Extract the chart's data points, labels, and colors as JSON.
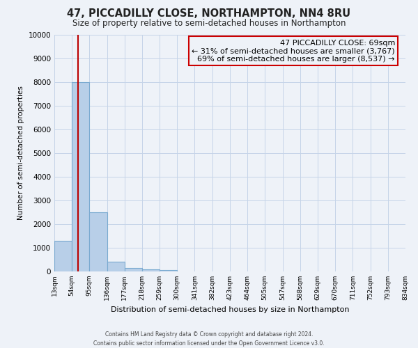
{
  "title": "47, PICCADILLY CLOSE, NORTHAMPTON, NN4 8RU",
  "subtitle": "Size of property relative to semi-detached houses in Northampton",
  "xlabel": "Distribution of semi-detached houses by size in Northampton",
  "ylabel": "Number of semi-detached properties",
  "bar_color": "#b8cfe8",
  "bar_edge_color": "#7aaad0",
  "bin_labels": [
    "13sqm",
    "54sqm",
    "95sqm",
    "136sqm",
    "177sqm",
    "218sqm",
    "259sqm",
    "300sqm",
    "341sqm",
    "382sqm",
    "423sqm",
    "464sqm",
    "505sqm",
    "547sqm",
    "588sqm",
    "629sqm",
    "670sqm",
    "711sqm",
    "752sqm",
    "793sqm",
    "834sqm"
  ],
  "bin_edges": [
    13,
    54,
    95,
    136,
    177,
    218,
    259,
    300,
    341,
    382,
    423,
    464,
    505,
    547,
    588,
    629,
    670,
    711,
    752,
    793,
    834
  ],
  "bar_heights": [
    1300,
    8000,
    2500,
    400,
    150,
    100,
    50,
    0,
    0,
    0,
    0,
    0,
    0,
    0,
    0,
    0,
    0,
    0,
    0,
    0
  ],
  "ylim": [
    0,
    10000
  ],
  "yticks": [
    0,
    1000,
    2000,
    3000,
    4000,
    5000,
    6000,
    7000,
    8000,
    9000,
    10000
  ],
  "property_size": 69,
  "red_line_color": "#bb0000",
  "annotation_text_line1": "47 PICCADILLY CLOSE: 69sqm",
  "annotation_text_line2": "← 31% of semi-detached houses are smaller (3,767)",
  "annotation_text_line3": "69% of semi-detached houses are larger (8,537) →",
  "annotation_box_color": "#cc0000",
  "background_color": "#eef2f8",
  "grid_color": "#c5d4e8",
  "footer_line1": "Contains HM Land Registry data © Crown copyright and database right 2024.",
  "footer_line2": "Contains public sector information licensed under the Open Government Licence v3.0."
}
